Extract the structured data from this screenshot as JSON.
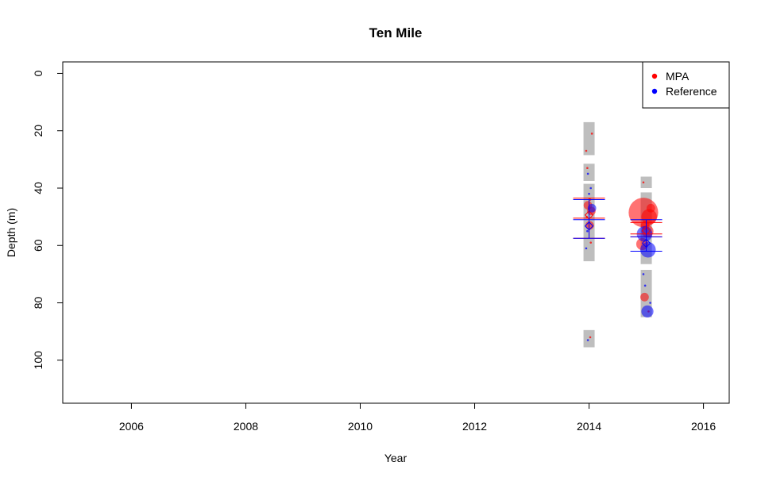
{
  "chart_data": {
    "type": "scatter",
    "title": "Ten Mile",
    "xlabel": "Year",
    "ylabel": "Depth (m)",
    "xlim": [
      2004.8,
      2016.45
    ],
    "ylim": [
      115,
      -4
    ],
    "y_inverted": true,
    "x_ticks": [
      2006,
      2008,
      2010,
      2012,
      2014,
      2016
    ],
    "y_ticks": [
      0,
      20,
      40,
      60,
      80,
      100
    ],
    "legend_position": "top-right",
    "colors": {
      "MPA": "#ff0000",
      "Reference": "#0000ff",
      "depth_bars": "#bebebe"
    },
    "series": [
      {
        "name": "MPA",
        "color": "#ff0000",
        "points": [
          {
            "x": 2014.05,
            "y": 21,
            "s": 1
          },
          {
            "x": 2013.95,
            "y": 27,
            "s": 1
          },
          {
            "x": 2013.97,
            "y": 33,
            "s": 1
          },
          {
            "x": 2014.02,
            "y": 44,
            "s": 1
          },
          {
            "x": 2013.98,
            "y": 46,
            "s": 2
          },
          {
            "x": 2014.04,
            "y": 48,
            "s": 2
          },
          {
            "x": 2013.96,
            "y": 50,
            "s": 1
          },
          {
            "x": 2014.01,
            "y": 53,
            "s": 2
          },
          {
            "x": 2014.03,
            "y": 59,
            "s": 1
          },
          {
            "x": 2014.02,
            "y": 92,
            "s": 1
          },
          {
            "x": 2014.95,
            "y": 38,
            "s": 1
          },
          {
            "x": 2014.95,
            "y": 48.5,
            "s": 8
          },
          {
            "x": 2015.05,
            "y": 50,
            "s": 4
          },
          {
            "x": 2015.08,
            "y": 47,
            "s": 2
          },
          {
            "x": 2014.98,
            "y": 53,
            "s": 2
          },
          {
            "x": 2015.02,
            "y": 55,
            "s": 3
          },
          {
            "x": 2014.93,
            "y": 59.5,
            "s": 3
          },
          {
            "x": 2014.97,
            "y": 78,
            "s": 2
          },
          {
            "x": 2015.04,
            "y": 83,
            "s": 1
          }
        ]
      },
      {
        "name": "Reference",
        "color": "#0000ff",
        "points": [
          {
            "x": 2013.98,
            "y": 35,
            "s": 1
          },
          {
            "x": 2014.03,
            "y": 40,
            "s": 1
          },
          {
            "x": 2014.0,
            "y": 42,
            "s": 1
          },
          {
            "x": 2014.05,
            "y": 47,
            "s": 2
          },
          {
            "x": 2013.97,
            "y": 55,
            "s": 1
          },
          {
            "x": 2013.95,
            "y": 61,
            "s": 1
          },
          {
            "x": 2013.98,
            "y": 93,
            "s": 1
          },
          {
            "x": 2014.97,
            "y": 56,
            "s": 4
          },
          {
            "x": 2015.03,
            "y": 61.5,
            "s": 4
          },
          {
            "x": 2014.95,
            "y": 70,
            "s": 1
          },
          {
            "x": 2014.98,
            "y": 74,
            "s": 1
          },
          {
            "x": 2015.07,
            "y": 80,
            "s": 1
          },
          {
            "x": 2015.02,
            "y": 83,
            "s": 3
          }
        ]
      }
    ],
    "depth_bars": [
      {
        "x": 2014,
        "from": 17,
        "to": 28.5
      },
      {
        "x": 2014,
        "from": 31.5,
        "to": 37.5
      },
      {
        "x": 2014,
        "from": 38.5,
        "to": 65.5
      },
      {
        "x": 2014,
        "from": 89.5,
        "to": 95.5
      },
      {
        "x": 2015,
        "from": 36,
        "to": 40
      },
      {
        "x": 2015,
        "from": 41.5,
        "to": 66.5
      },
      {
        "x": 2015,
        "from": 68.5,
        "to": 85
      }
    ],
    "mean_markers": [
      {
        "series": "MPA",
        "x": 2014,
        "mean": 50.5,
        "lower": 43.5,
        "upper": 57.5
      },
      {
        "series": "Reference",
        "x": 2014,
        "mean": 51,
        "lower": 44,
        "upper": 57.5
      },
      {
        "series": "MPA",
        "x": 2015,
        "mean": 56,
        "lower": 52,
        "upper": 57
      },
      {
        "series": "Reference",
        "x": 2015,
        "mean": 57,
        "lower": 51,
        "upper": 62
      }
    ]
  }
}
